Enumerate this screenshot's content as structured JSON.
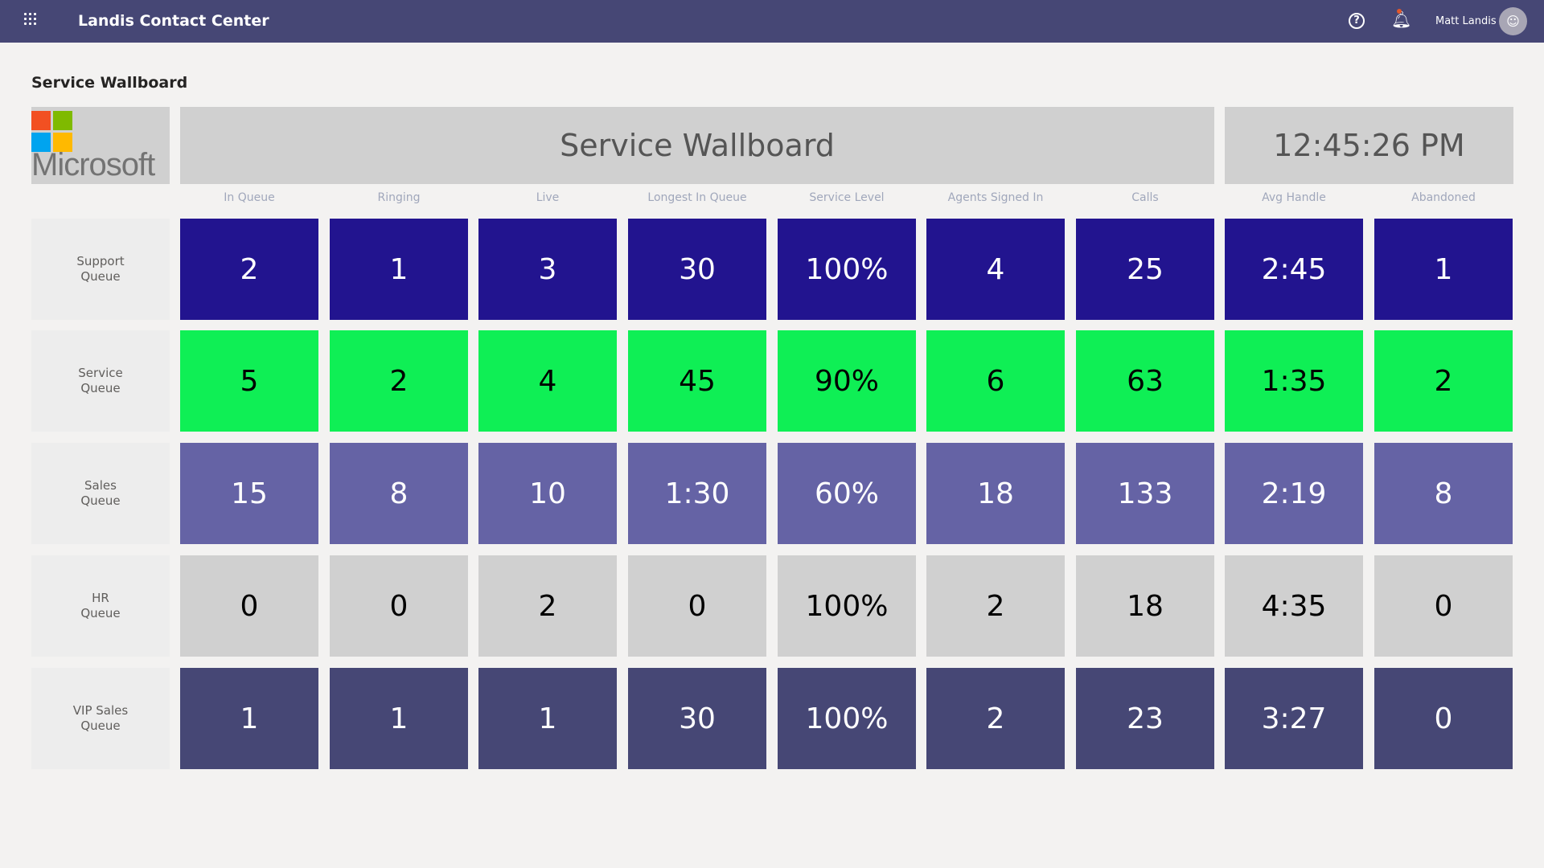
{
  "topbar": {
    "app_title": "Landis Contact Center",
    "user_name": "Matt Landis",
    "icons": [
      "waffle-icon",
      "help-icon",
      "bell-icon",
      "avatar"
    ]
  },
  "page_title": "Service Wallboard",
  "logo": {
    "text": "Microsoft",
    "colors": [
      "#f25022",
      "#7fba00",
      "#00a4ef",
      "#ffb900"
    ]
  },
  "banner": {
    "title": "Service Wallboard",
    "time": "12:45:26 PM"
  },
  "columns": [
    "In Queue",
    "Ringing",
    "Live",
    "Longest In Queue",
    "Service Level",
    "Agents Signed In",
    "Calls",
    "Avg Handle",
    "Abandoned"
  ],
  "rows": [
    {
      "label": "Support\nQueue",
      "bg": "#22148f",
      "fg": "#ffffff",
      "values": [
        "2",
        "1",
        "3",
        "30",
        "100%",
        "4",
        "25",
        "2:45",
        "1"
      ]
    },
    {
      "label": "Service\nQueue",
      "bg": "#0fef55",
      "fg": "#000000",
      "values": [
        "5",
        "2",
        "4",
        "45",
        "90%",
        "6",
        "63",
        "1:35",
        "2"
      ]
    },
    {
      "label": "Sales\nQueue",
      "bg": "#6563a5",
      "fg": "#ffffff",
      "values": [
        "15",
        "8",
        "10",
        "1:30",
        "60%",
        "18",
        "133",
        "2:19",
        "8"
      ]
    },
    {
      "label": "HR\nQueue",
      "bg": "#d0d0d0",
      "fg": "#000000",
      "values": [
        "0",
        "0",
        "2",
        "0",
        "100%",
        "2",
        "18",
        "4:35",
        "0"
      ]
    },
    {
      "label": "VIP Sales\nQueue",
      "bg": "#464775",
      "fg": "#ffffff",
      "values": [
        "1",
        "1",
        "1",
        "30",
        "100%",
        "2",
        "23",
        "3:27",
        "0"
      ]
    }
  ]
}
